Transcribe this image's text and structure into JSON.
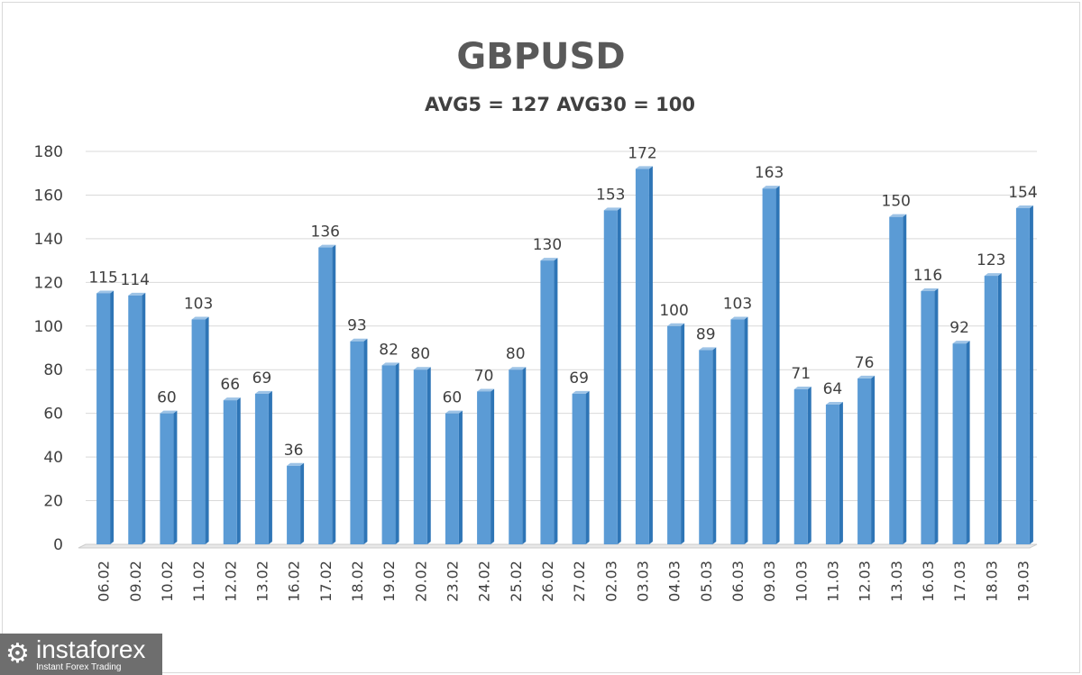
{
  "chart_data": {
    "type": "bar",
    "title": "GBPUSD",
    "subtitle": "AVG5 = 127 AVG30 = 100",
    "xlabel": "",
    "ylabel": "",
    "ylim": [
      0,
      180
    ],
    "yticks": [
      0,
      20,
      40,
      60,
      80,
      100,
      120,
      140,
      160,
      180
    ],
    "grid": true,
    "categories": [
      "06.02",
      "09.02",
      "10.02",
      "11.02",
      "12.02",
      "13.02",
      "16.02",
      "17.02",
      "18.02",
      "19.02",
      "20.02",
      "23.02",
      "24.02",
      "25.02",
      "26.02",
      "27.02",
      "02.03",
      "03.03",
      "04.03",
      "05.03",
      "06.03",
      "09.03",
      "10.03",
      "11.03",
      "12.03",
      "13.03",
      "16.03",
      "17.03",
      "18.03",
      "19.03"
    ],
    "values": [
      115,
      114,
      60,
      103,
      66,
      69,
      36,
      136,
      93,
      82,
      80,
      60,
      70,
      80,
      130,
      69,
      153,
      172,
      100,
      89,
      103,
      163,
      71,
      64,
      76,
      150,
      116,
      92,
      123,
      154
    ],
    "bar_color": "#5b9bd5"
  },
  "watermark": {
    "name": "instaforex",
    "tagline": "Instant Forex Trading"
  }
}
